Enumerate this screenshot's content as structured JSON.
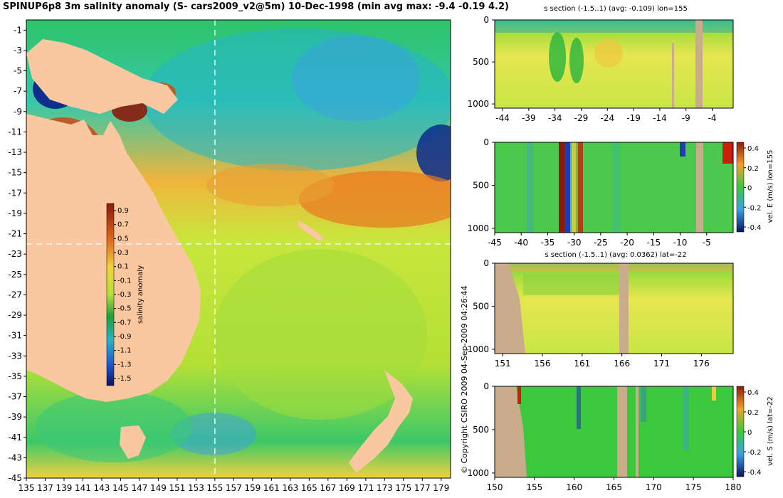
{
  "main_title": "SPINUP6p8 3m salinity anomaly (S- cars2009_v2@5m) 10-Dec-1998 (min avg max: -9.4 -0.19 4.2)",
  "copyright": "© Copyright CSIRO 2009  04-Sep-2009 04:26:44",
  "colors": {
    "land": "#f9c8a0",
    "section_land": "#c8ac8c",
    "crosshair": "#ffffff"
  },
  "map": {
    "lon_ticks": [
      "135",
      "137",
      "139",
      "141",
      "143",
      "145",
      "147",
      "149",
      "151",
      "153",
      "155",
      "157",
      "159",
      "161",
      "163",
      "165",
      "167",
      "169",
      "171",
      "173",
      "175",
      "177",
      "179"
    ],
    "lat_ticks": [
      "-1",
      "-3",
      "-5",
      "-7",
      "-9",
      "-11",
      "-13",
      "-15",
      "-17",
      "-19",
      "-21",
      "-23",
      "-25",
      "-27",
      "-29",
      "-31",
      "-33",
      "-35",
      "-37",
      "-39",
      "-41",
      "-43",
      "-45"
    ],
    "lon_range": [
      135,
      180
    ],
    "lat_range": [
      -45,
      0
    ],
    "crosshair": {
      "lon": 155,
      "lat": -22
    },
    "colorbar": {
      "label": "salinity anomaly",
      "ticks": [
        "0.9",
        "0.7",
        "0.5",
        "0.3",
        "0.1",
        "-0.1",
        "-0.3",
        "-0.5",
        "-0.7",
        "-0.9",
        "-1.1",
        "-1.3",
        "-1.5"
      ]
    }
  },
  "sections": [
    {
      "title": "s section (-1.5..1) (avg: -0.109) lon=155",
      "y_ticks": [
        "0",
        "500",
        "1000"
      ],
      "x_ticks": [
        "-44",
        "-39",
        "-34",
        "-29",
        "-24",
        "-19",
        "-14",
        "-9",
        "-4"
      ],
      "colorbar_label": "",
      "colorbar_ticks": []
    },
    {
      "title": "",
      "y_ticks": [
        "0",
        "500",
        "1000"
      ],
      "x_ticks": [
        "-45",
        "-40",
        "-35",
        "-30",
        "-25",
        "-20",
        "-15",
        "-10",
        "-5"
      ],
      "colorbar_label": "vel. E (m/s) lon=155",
      "colorbar_ticks": [
        "0.4",
        "0.2",
        "0",
        "-0.2",
        "-0.4"
      ]
    },
    {
      "title": "s section (-1.5..1) (avg: 0.0362) lat=-22",
      "y_ticks": [
        "0",
        "500",
        "1000"
      ],
      "x_ticks": [
        "151",
        "156",
        "161",
        "166",
        "171",
        "176"
      ],
      "colorbar_label": "",
      "colorbar_ticks": []
    },
    {
      "title": "",
      "y_ticks": [
        "0",
        "500",
        "1000"
      ],
      "x_ticks": [
        "150",
        "155",
        "160",
        "165",
        "170",
        "175",
        "180"
      ],
      "colorbar_label": "vel. S (m/s) lat=-22",
      "colorbar_ticks": [
        "0.4",
        "0.2",
        "0",
        "-0.2",
        "-0.4"
      ]
    }
  ]
}
